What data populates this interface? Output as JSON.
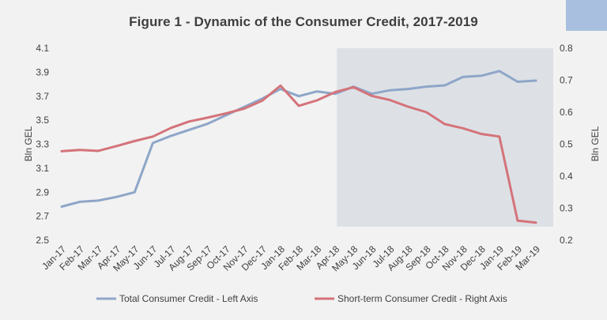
{
  "header": {
    "title": "Figure 1 - Dynamic of the Consumer Credit, 2017-2019"
  },
  "colors": {
    "background": "#f2f2f2",
    "corner_accent": "#a9bfe0",
    "shaded_region": "#dde1e6",
    "total_series": "#8ea6c8",
    "short_term_series": "#d4737a"
  },
  "chart_data": {
    "type": "line",
    "title": "Figure 1 - Dynamic of the Consumer Credit, 2017-2019",
    "xlabel": "",
    "ylabel_left": "Bln GEL",
    "ylabel_right": "Bln GEL",
    "ylim_left": [
      2.5,
      4.1
    ],
    "ylim_right": [
      0.2,
      0.8
    ],
    "yticks_left": [
      "2.5",
      "2.7",
      "2.9",
      "3.1",
      "3.3",
      "3.5",
      "3.7",
      "3.9",
      "4.1"
    ],
    "yticks_right": [
      "0.2",
      "0.3",
      "0.4",
      "0.5",
      "0.6",
      "0.7",
      "0.8"
    ],
    "grid": false,
    "legend_position": "bottom",
    "shaded_region": {
      "from": "May-18",
      "to": "Mar-19"
    },
    "categories": [
      "Jan-17",
      "Feb-17",
      "Mar-17",
      "Apr-17",
      "May-17",
      "Jun-17",
      "Jul-17",
      "Aug-17",
      "Sep-17",
      "Oct-17",
      "Nov-17",
      "Dec-17",
      "Jan-18",
      "Feb-18",
      "Mar-18",
      "Apr-18",
      "May-18",
      "Jun-18",
      "Jul-18",
      "Aug-18",
      "Sep-18",
      "Oct-18",
      "Nov-18",
      "Dec-18",
      "Jan-19",
      "Feb-19",
      "Mar-19"
    ],
    "series": [
      {
        "name": "Total Consumer Credit - Left Axis",
        "axis": "left",
        "values": [
          2.78,
          2.82,
          2.83,
          2.86,
          2.9,
          3.31,
          3.37,
          3.42,
          3.47,
          3.54,
          3.61,
          3.68,
          3.76,
          3.7,
          3.74,
          3.72,
          3.78,
          3.72,
          3.75,
          3.76,
          3.78,
          3.79,
          3.86,
          3.87,
          3.91,
          3.82,
          3.83
        ]
      },
      {
        "name": "Short-term Consumer Credit - Right Axis",
        "axis": "right",
        "values": [
          0.478,
          0.482,
          0.479,
          0.494,
          0.51,
          0.524,
          0.551,
          0.571,
          0.583,
          0.596,
          0.611,
          0.636,
          0.683,
          0.62,
          0.637,
          0.663,
          0.678,
          0.651,
          0.638,
          0.617,
          0.6,
          0.563,
          0.55,
          0.532,
          0.524,
          0.261,
          0.255
        ]
      }
    ]
  }
}
